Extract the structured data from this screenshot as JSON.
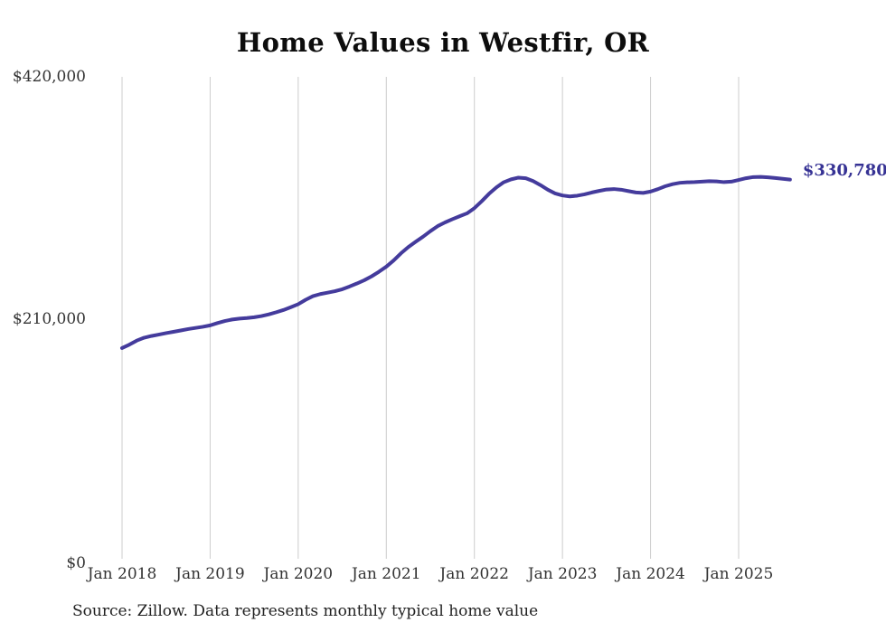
{
  "title": "Home Values in Westfir, OR",
  "source_note": "Source: Zillow. Data represents monthly typical home value",
  "end_label": "$330,780",
  "colors": {
    "line": "#443b9c",
    "end_label_text": "#363294",
    "gridline": "#cccccc",
    "axis_text": "#333333",
    "title_text": "#0d0d0d"
  },
  "chart_data": {
    "type": "line",
    "title": "Home Values in Westfir, OR",
    "xlabel": "",
    "ylabel": "",
    "ylim": [
      0,
      420000
    ],
    "grid": "vertical-only",
    "legend": "none",
    "frequency": "monthly",
    "x_start": "2018-01",
    "x_end": "2025-08",
    "x_tick_labels": [
      "Jan 2018",
      "Jan 2019",
      "Jan 2020",
      "Jan 2021",
      "Jan 2022",
      "Jan 2023",
      "Jan 2024",
      "Jan 2025"
    ],
    "y_ticks": [
      {
        "label": "$0",
        "value": 0
      },
      {
        "label": "$210,000",
        "value": 210000
      },
      {
        "label": "$420,000",
        "value": 420000
      }
    ],
    "end_value": 330780,
    "series": [
      {
        "name": "Typical home value",
        "values": [
          184500,
          187500,
          191000,
          193500,
          195000,
          196200,
          197500,
          198600,
          199800,
          201000,
          202000,
          203000,
          204200,
          206200,
          208000,
          209300,
          210100,
          210600,
          211300,
          212300,
          213800,
          215600,
          217600,
          220000,
          222600,
          226400,
          229600,
          231400,
          232600,
          233900,
          235600,
          238000,
          240600,
          243400,
          246800,
          250800,
          255200,
          260600,
          266800,
          272200,
          276800,
          281200,
          286000,
          290400,
          293600,
          296400,
          299000,
          301500,
          306000,
          312000,
          318500,
          324000,
          328500,
          331000,
          332500,
          332000,
          329500,
          326000,
          322000,
          318800,
          317000,
          316200,
          316800,
          318000,
          319600,
          321000,
          322200,
          322600,
          322000,
          320800,
          319600,
          319200,
          320400,
          322500,
          325000,
          326800,
          328000,
          328400,
          328600,
          329000,
          329400,
          329200,
          328600,
          329000,
          330500,
          332000,
          333000,
          333200,
          332800,
          332200,
          331500,
          330780
        ]
      }
    ]
  }
}
